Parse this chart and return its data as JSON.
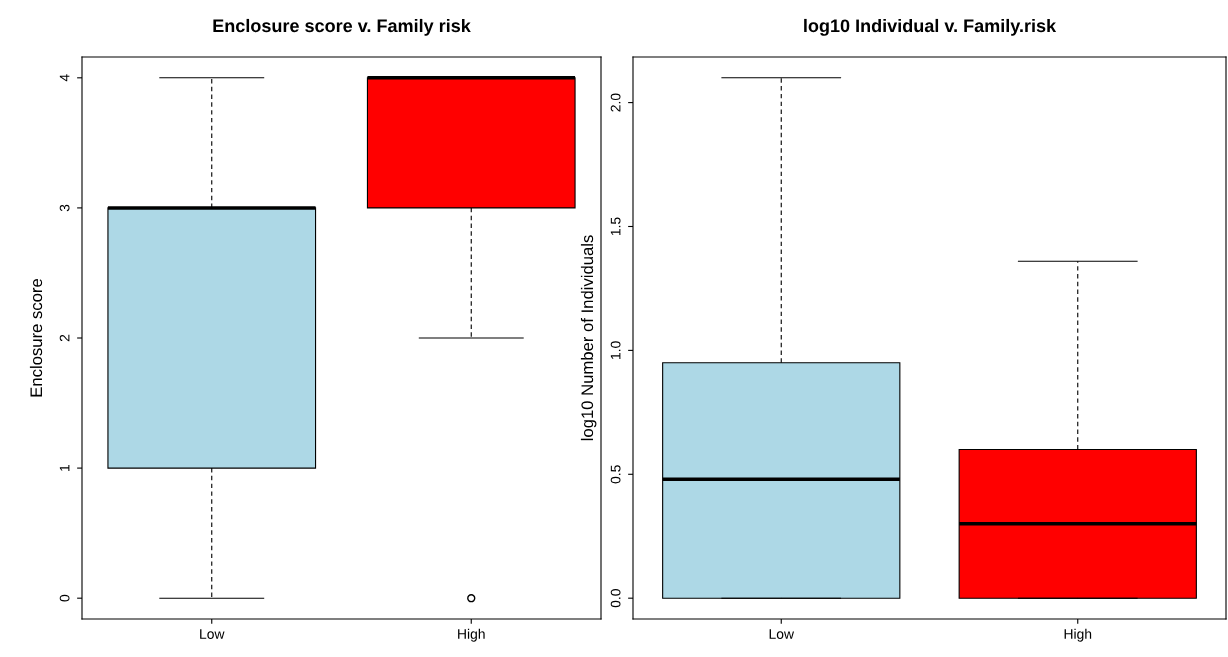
{
  "chart_data": [
    {
      "type": "box",
      "title": "Enclosure score v. Family risk",
      "ylabel": "Enclosure score",
      "categories": [
        "Low",
        "High"
      ],
      "colors": [
        "#add8e6",
        "#ff0000"
      ],
      "boxes": [
        {
          "low": 0,
          "q1": 1,
          "median": 3,
          "q3": 3,
          "high": 4
        },
        {
          "low": 2,
          "q1": 3,
          "median": 4,
          "q3": 4,
          "high": 4,
          "outliers": [
            0
          ]
        }
      ],
      "ylim": [
        -0.16,
        4.16
      ],
      "yticks": [
        0,
        1,
        2,
        3,
        4
      ],
      "grid": false
    },
    {
      "type": "box",
      "title": "log10 Individual v. Family.risk",
      "ylabel": "log10 Number of Individuals",
      "categories": [
        "Low",
        "High"
      ],
      "colors": [
        "#add8e6",
        "#ff0000"
      ],
      "boxes": [
        {
          "low": 0,
          "q1": 0,
          "median": 0.48,
          "q3": 0.95,
          "high": 2.1
        },
        {
          "low": 0,
          "q1": 0,
          "median": 0.3,
          "q3": 0.6,
          "high": 1.36
        }
      ],
      "ylim": [
        -0.084,
        2.184
      ],
      "yticks": [
        {
          "value": 0,
          "label": "0.0"
        },
        {
          "value": 0.5,
          "label": "0.5"
        },
        {
          "value": 1,
          "label": "1.0"
        },
        {
          "value": 1.5,
          "label": "1.5"
        },
        {
          "value": 2,
          "label": "2.0"
        }
      ],
      "grid": false
    }
  ]
}
